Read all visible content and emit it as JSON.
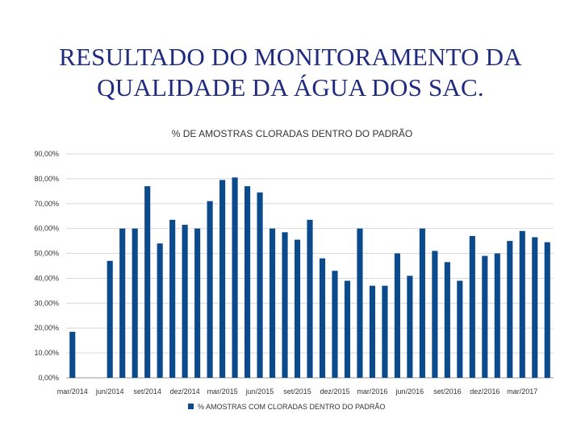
{
  "slide": {
    "title_line1": "RESULTADO DO MONITORAMENTO DA",
    "title_line2": "QUALIDADE DA ÁGUA DOS SAC."
  },
  "chart_data": {
    "type": "bar",
    "title": "% DE AMOSTRAS CLORADAS DENTRO DO PADRÃO",
    "xlabel": "",
    "ylabel": "",
    "ylim": [
      0,
      90
    ],
    "y_ticks": [
      "0,00%",
      "10,00%",
      "20,00%",
      "30,00%",
      "40,00%",
      "50,00%",
      "60,00%",
      "70,00%",
      "80,00%",
      "90,00%"
    ],
    "x_tick_labels": [
      "mar/2014",
      "jun/2014",
      "set/2014",
      "dez/2014",
      "mar/2015",
      "jun/2015",
      "set/2015",
      "dez/2015",
      "mar/2016",
      "jun/2016",
      "set/2016",
      "dez/2016",
      "mar/2017"
    ],
    "categories": [
      "mar/2014",
      "abr/2014",
      "mai/2014",
      "jun/2014",
      "jul/2014",
      "ago/2014",
      "set/2014",
      "out/2014",
      "nov/2014",
      "dez/2014",
      "jan/2015",
      "fev/2015",
      "mar/2015",
      "abr/2015",
      "mai/2015",
      "jun/2015",
      "jul/2015",
      "ago/2015",
      "set/2015",
      "out/2015",
      "nov/2015",
      "dez/2015",
      "jan/2016",
      "fev/2016",
      "mar/2016",
      "abr/2016",
      "mai/2016",
      "jun/2016",
      "jul/2016",
      "ago/2016",
      "set/2016",
      "out/2016",
      "nov/2016",
      "dez/2016",
      "jan/2017",
      "fev/2017",
      "mar/2017",
      "abr/2017",
      "mai/2017"
    ],
    "series": [
      {
        "name": "% AMOSTRAS COM CLORADAS DENTRO DO PADRÃO",
        "color": "#0b4a8b",
        "values": [
          18.5,
          null,
          null,
          47,
          60,
          60,
          77,
          54,
          63.5,
          61.5,
          60,
          71,
          79.5,
          80.5,
          77,
          74.5,
          60,
          58.5,
          55.5,
          63.5,
          48,
          43,
          39,
          60,
          37,
          37,
          50,
          41,
          60,
          51,
          46.5,
          39,
          57,
          49,
          50,
          55,
          59,
          56.5,
          54.5
        ]
      }
    ],
    "grid": true,
    "legend_position": "bottom",
    "colors": {
      "bar": "#0b4a8b",
      "grid": "#d9d9d9",
      "axis_text": "#333333"
    }
  }
}
